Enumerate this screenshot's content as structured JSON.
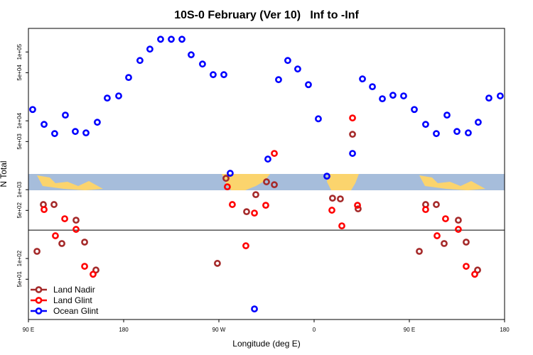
{
  "chart_data": {
    "type": "scatter",
    "title": "10S-0 February (Ver 10)   Inf to -Inf",
    "x_label": "Longitude (deg E)",
    "y_label": "N Total",
    "log_y": true,
    "legend": "bottom-left",
    "hline": 258,
    "xlim": [
      90,
      540
    ],
    "ylim": [
      13,
      220000
    ],
    "xticks": [
      {
        "value": 90,
        "label": "90 E"
      },
      180,
      {
        "value": 270,
        "label": "90 W"
      },
      {
        "value": 360,
        "label": "0"
      },
      {
        "value": 450,
        "label": "90 E"
      },
      {
        "value": 540,
        "label": "180"
      }
    ],
    "yticks": [
      {
        "value": 50,
        "label": "5e+01"
      },
      {
        "value": 100,
        "label": "1e+02"
      },
      {
        "value": 500,
        "label": "5e+02"
      },
      {
        "value": 1000,
        "label": "1e+03"
      },
      {
        "value": 5000,
        "label": "5e+03"
      },
      {
        "value": 10000,
        "label": "1e+04"
      },
      {
        "value": 50000,
        "label": "5e+04"
      },
      {
        "value": 100000,
        "label": "1e+05"
      }
    ],
    "series": [
      {
        "name": "Land Nadir",
        "color": "#a52a2a",
        "x": [
          98.1,
          104.1,
          114.2,
          121.6,
          135.0,
          143.1,
          153.8,
          268.6,
          276.7,
          296.2,
          304.9,
          315.0,
          322.4,
          377.4,
          384.8,
          396.3,
          401.6,
          459.4,
          465.4,
          475.5,
          482.9,
          496.3,
          503.7,
          514.5
        ],
        "values": [
          127,
          608,
          608,
          165,
          360,
          173,
          68,
          85,
          1460,
          479,
          847,
          1300,
          1180,
          752,
          734,
          6370,
          527,
          127,
          608,
          608,
          165,
          360,
          173,
          68
        ]
      },
      {
        "name": "Land Glint",
        "color": "#ff0000",
        "x": [
          104.8,
          115.5,
          124.3,
          135.0,
          143.1,
          151.1,
          278.0,
          282.7,
          295.5,
          303.6,
          314.3,
          322.4,
          376.8,
          386.2,
          396.3,
          401.0,
          465.4,
          476.2,
          484.2,
          496.3,
          503.7,
          511.8
        ],
        "values": [
          514,
          214,
          378,
          265,
          77,
          59,
          1100,
          608,
          153,
          457,
          593,
          3360,
          503,
          298,
          11000,
          593,
          514,
          214,
          378,
          265,
          77,
          59
        ]
      },
      {
        "name": "Ocean Glint",
        "color": "#0000ff",
        "x": [
          94.0,
          104.8,
          114.8,
          124.9,
          134.3,
          144.4,
          155.1,
          164.5,
          175.3,
          184.7,
          195.4,
          204.8,
          214.9,
          225.0,
          235.1,
          243.8,
          254.5,
          264.6,
          274.7,
          280.7,
          316.3,
          326.4,
          335.1,
          344.5,
          354.6,
          364.0,
          372.1,
          396.3,
          405.7,
          415.1,
          424.5,
          434.5,
          444.6,
          454.7,
          465.4,
          475.5,
          485.6,
          495.0,
          505.7,
          515.1,
          525.2,
          535.9,
          303.6
        ],
        "values": [
          14600,
          8880,
          6520,
          12100,
          7000,
          6680,
          9530,
          21400,
          23000,
          42600,
          75200,
          110000,
          153000,
          153000,
          153000,
          91000,
          66800,
          46800,
          46800,
          1730,
          2780,
          39600,
          75200,
          56600,
          33500,
          10700,
          1570,
          3360,
          40600,
          31300,
          20900,
          23500,
          23000,
          14600,
          8880,
          6520,
          12100,
          7000,
          6680,
          9530,
          21400,
          23000,
          18.5
        ]
      }
    ]
  }
}
